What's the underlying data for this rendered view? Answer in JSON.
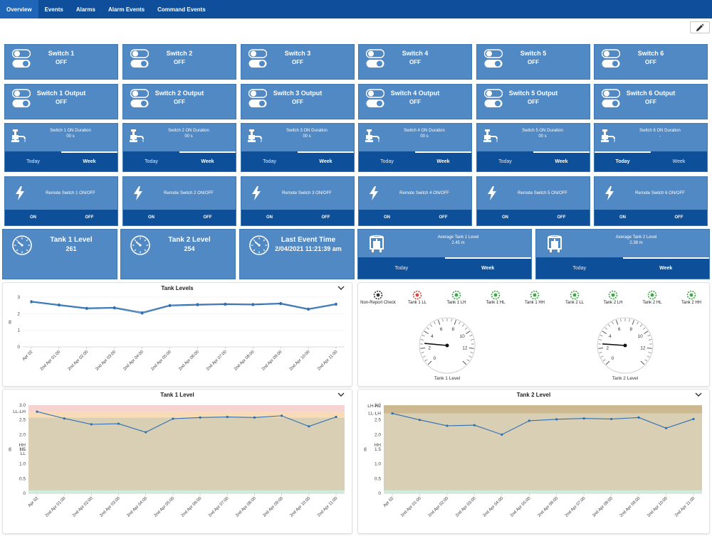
{
  "nav": {
    "tabs": [
      {
        "label": "Overview",
        "active": true
      },
      {
        "label": "Events",
        "active": false
      },
      {
        "label": "Alarms",
        "active": false
      },
      {
        "label": "Alarm Events",
        "active": false
      },
      {
        "label": "Command Events",
        "active": false
      }
    ]
  },
  "switches": [
    {
      "title": "Switch 1",
      "value": "OFF"
    },
    {
      "title": "Switch 2",
      "value": "OFF"
    },
    {
      "title": "Switch 3",
      "value": "OFF"
    },
    {
      "title": "Switch 4",
      "value": "OFF"
    },
    {
      "title": "Switch 5",
      "value": "OFF"
    },
    {
      "title": "Switch 6",
      "value": "OFF"
    }
  ],
  "outputs": [
    {
      "title": "Switch 1 Output",
      "value": "OFF"
    },
    {
      "title": "Switch 2 Output",
      "value": "OFF"
    },
    {
      "title": "Switch 3 Output",
      "value": "OFF"
    },
    {
      "title": "Switch 4 Output",
      "value": "OFF"
    },
    {
      "title": "Switch 5 Output",
      "value": "OFF"
    },
    {
      "title": "Switch 6 Output",
      "value": "OFF"
    }
  ],
  "durations": [
    {
      "title": "Switch 1 ON Duration",
      "value": "00 s",
      "tabs": [
        "Today",
        "Week"
      ],
      "selected": 1
    },
    {
      "title": "Switch 2 ON Duration",
      "value": "00 s",
      "tabs": [
        "Today",
        "Week"
      ],
      "selected": 1
    },
    {
      "title": "Switch 3 ON Duration",
      "value": "00 s",
      "tabs": [
        "Today",
        "Week"
      ],
      "selected": 1
    },
    {
      "title": "Switch 4 ON Duration",
      "value": "00 s",
      "tabs": [
        "Today",
        "Week"
      ],
      "selected": 1
    },
    {
      "title": "Switch 5 ON Duration",
      "value": "00 s",
      "tabs": [
        "Today",
        "Week"
      ],
      "selected": 1
    },
    {
      "title": "Switch 6 ON Duration",
      "value": "-",
      "tabs": [
        "Today",
        "Week"
      ],
      "selected": 0
    }
  ],
  "remotes": [
    {
      "title": "Remote Switch 1 ON/OFF",
      "on": "ON",
      "off": "OFF"
    },
    {
      "title": "Remote Switch 2 ON/OFF",
      "on": "ON",
      "off": "OFF"
    },
    {
      "title": "Remote Switch 3 ON/OFF",
      "on": "ON",
      "off": "OFF"
    },
    {
      "title": "Remote Switch 4 ON/OFF",
      "on": "ON",
      "off": "OFF"
    },
    {
      "title": "Remote Switch 5 ON/OFF",
      "on": "ON",
      "off": "OFF"
    },
    {
      "title": "Remote Switch 6 ON/OFF",
      "on": "ON",
      "off": "OFF"
    }
  ],
  "status": [
    {
      "title": "Tank 1 Level",
      "value": "261"
    },
    {
      "title": "Tank 2 Level",
      "value": "254"
    },
    {
      "title": "Last Event Time",
      "value": "2/04/2021 11:21:39 am"
    }
  ],
  "averages": [
    {
      "title": "Average Tank 1 Level",
      "value": "2.45 m",
      "tabs": [
        "Today",
        "Week"
      ],
      "selected": 1
    },
    {
      "title": "Average Tank 2 Level",
      "value": "2.38 m",
      "tabs": [
        "Today",
        "Week"
      ],
      "selected": 1
    }
  ],
  "indicators": {
    "colors": {
      "neutral": "#333333",
      "alarm": "#d9463f",
      "ok": "#3aa845"
    },
    "items": [
      {
        "label": "Non-Report Check",
        "state": "neutral"
      },
      {
        "label": "Tank 1 LL",
        "state": "alarm"
      },
      {
        "label": "Tank 1 LH",
        "state": "ok"
      },
      {
        "label": "Tank 1 HL",
        "state": "ok"
      },
      {
        "label": "Tank 1 HH",
        "state": "ok"
      },
      {
        "label": "Tank 2 LL",
        "state": "ok"
      },
      {
        "label": "Tank 2 LH",
        "state": "ok"
      },
      {
        "label": "Tank 2 HL",
        "state": "ok"
      },
      {
        "label": "Tank 2 HH",
        "state": "ok"
      }
    ]
  },
  "gauges": [
    {
      "label": "Tank 1 Level",
      "value": 2.61,
      "min": 0,
      "max": 14,
      "ticks": [
        "0",
        "2",
        "4",
        "6",
        "8",
        "10",
        "12"
      ]
    },
    {
      "label": "Tank 2 Level",
      "value": 2.54,
      "min": 0,
      "max": 14,
      "ticks": [
        "0",
        "2",
        "4",
        "6",
        "8",
        "10",
        "12"
      ]
    }
  ],
  "chart_data": [
    {
      "type": "line",
      "title": "Tank Levels",
      "ylabel": "m",
      "ylim": [
        0,
        3
      ],
      "yticks": [
        0,
        1,
        2,
        3
      ],
      "x": [
        "Apr 02",
        "2nd Apr 01:00",
        "2nd Apr 02:00",
        "2nd Apr 03:00",
        "2nd Apr 04:00",
        "2nd Apr 05:00",
        "2nd Apr 06:00",
        "2nd Apr 07:00",
        "2nd Apr 08:00",
        "2nd Apr 09:00",
        "2nd Apr 10:00",
        "2nd Apr 11:00"
      ],
      "series": [
        {
          "values": [
            2.75,
            2.55,
            2.35,
            2.38,
            2.08,
            2.52,
            2.57,
            2.6,
            2.58,
            2.64,
            2.3,
            2.6
          ]
        },
        {
          "values": [
            2.7,
            2.5,
            2.3,
            2.33,
            2.02,
            2.47,
            2.52,
            2.55,
            2.53,
            2.59,
            2.25,
            2.55
          ]
        }
      ]
    },
    {
      "type": "line",
      "title": "Tank 1 Level",
      "ylabel": "m",
      "ylim": [
        0,
        3
      ],
      "yticks": [
        "0",
        "0.5",
        "1.0",
        "1.5",
        "2.0",
        "2.5",
        "3.0"
      ],
      "threshold_labels": [
        "LL-LH",
        "HH",
        "HL",
        "LL"
      ],
      "x": [
        "Apr 02",
        "2nd Apr 01:00",
        "2nd Apr 02:00",
        "2nd Apr 03:00",
        "2nd Apr 04:00",
        "2nd Apr 05:00",
        "2nd Apr 06:00",
        "2nd Apr 07:00",
        "2nd Apr 08:00",
        "2nd Apr 09:00",
        "2nd Apr 10:00",
        "2nd Apr 11:00"
      ],
      "series": [
        {
          "values": [
            2.78,
            2.55,
            2.35,
            2.37,
            2.08,
            2.54,
            2.58,
            2.6,
            2.58,
            2.64,
            2.28,
            2.6
          ]
        }
      ]
    },
    {
      "type": "line",
      "title": "Tank 2 Level",
      "ylabel": "m",
      "ylim": [
        0,
        3
      ],
      "yticks": [
        "0",
        "0.5",
        "1.0",
        "1.5",
        "2.0",
        "2.5",
        "3.0"
      ],
      "threshold_labels": [
        "LH-HL",
        "LL-LH",
        "HH"
      ],
      "x": [
        "Apr 02",
        "2nd Apr 01:00",
        "2nd Apr 02:00",
        "2nd Apr 03:00",
        "2nd Apr 04:00",
        "2nd Apr 05:00",
        "2nd Apr 06:00",
        "2nd Apr 07:00",
        "2nd Apr 08:00",
        "2nd Apr 09:00",
        "2nd Apr 10:00",
        "2nd Apr 11:00"
      ],
      "series": [
        {
          "values": [
            2.72,
            2.5,
            2.3,
            2.32,
            2.0,
            2.47,
            2.52,
            2.55,
            2.53,
            2.58,
            2.22,
            2.53
          ]
        }
      ]
    }
  ],
  "theme": {
    "tile": "#5089c4",
    "tabbar": "#0d4f99",
    "nav": "#0e4e9a",
    "line": "#2f6fb0",
    "zone_red": "#f6d3cf",
    "zone_orange": "#f8dcb8",
    "zone_tan": "#d8cfb4",
    "zone_green": "#cfeedd"
  }
}
